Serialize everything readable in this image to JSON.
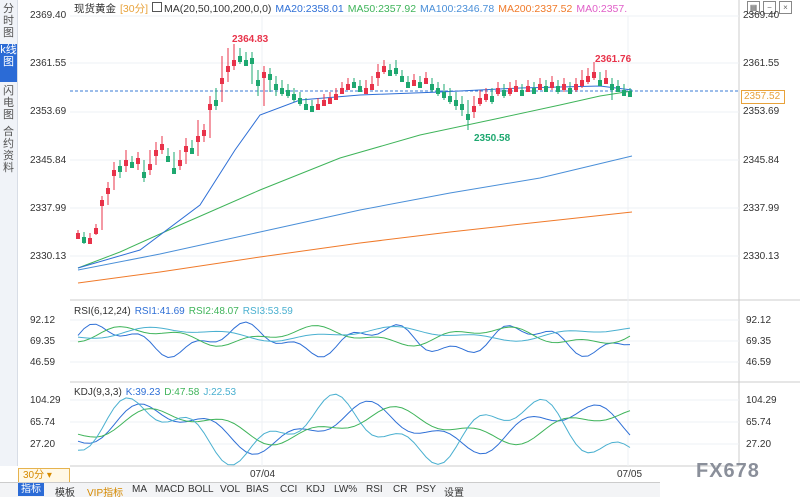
{
  "sidebar": {
    "items": [
      {
        "label": "分时图",
        "active": false
      },
      {
        "label": "k线图",
        "active": true
      },
      {
        "label": "闪电图",
        "active": false
      },
      {
        "label": "合约资料",
        "active": false
      }
    ]
  },
  "main_chart": {
    "symbol": "现货黄金",
    "period": "[30分]",
    "ma_label": "MA(20,50,100,200,0,0)",
    "ma20": "MA20:2358.01",
    "ma50": "MA50:2357.92",
    "ma100": "MA100:2346.78",
    "ma200": "MA200:2337.52",
    "ma0": "MA0:2357.",
    "y_ticks": [
      "2369.40",
      "2361.55",
      "2353.69",
      "2345.84",
      "2337.99",
      "2330.13"
    ],
    "current_price": "2357.52",
    "high_label": "2364.83",
    "high2_label": "2361.76",
    "low_label": "2350.58",
    "colors": {
      "up": "#e8334a",
      "down": "#1ea870",
      "ma20": "#2e6fd6",
      "ma50": "#3fb45a",
      "ma100": "#4a8fd8",
      "ma200": "#f07a2a"
    }
  },
  "rsi_panel": {
    "label": "RSI(6,12,24)",
    "rsi1": "RSI1:41.69",
    "rsi2": "RSI2:48.07",
    "rsi3": "RSI3:53.59",
    "y_ticks": [
      "92.12",
      "69.35",
      "46.59"
    ]
  },
  "kdj_panel": {
    "label": "KDJ(9,3,3)",
    "k": "K:39.23",
    "d": "D:47.58",
    "j": "J:22.53",
    "y_ticks": [
      "104.29",
      "65.74",
      "27.20"
    ]
  },
  "dates": [
    "07/04",
    "07/05"
  ],
  "period_selector": "30分",
  "bottom_tabs": [
    "指标",
    "模板",
    "VIP指标",
    "MA",
    "MACD",
    "BOLL",
    "VOL",
    "BIAS",
    "CCI",
    "KDJ",
    "LW%",
    "RSI",
    "CR",
    "PSY",
    "设置"
  ],
  "watermark": "FX678"
}
